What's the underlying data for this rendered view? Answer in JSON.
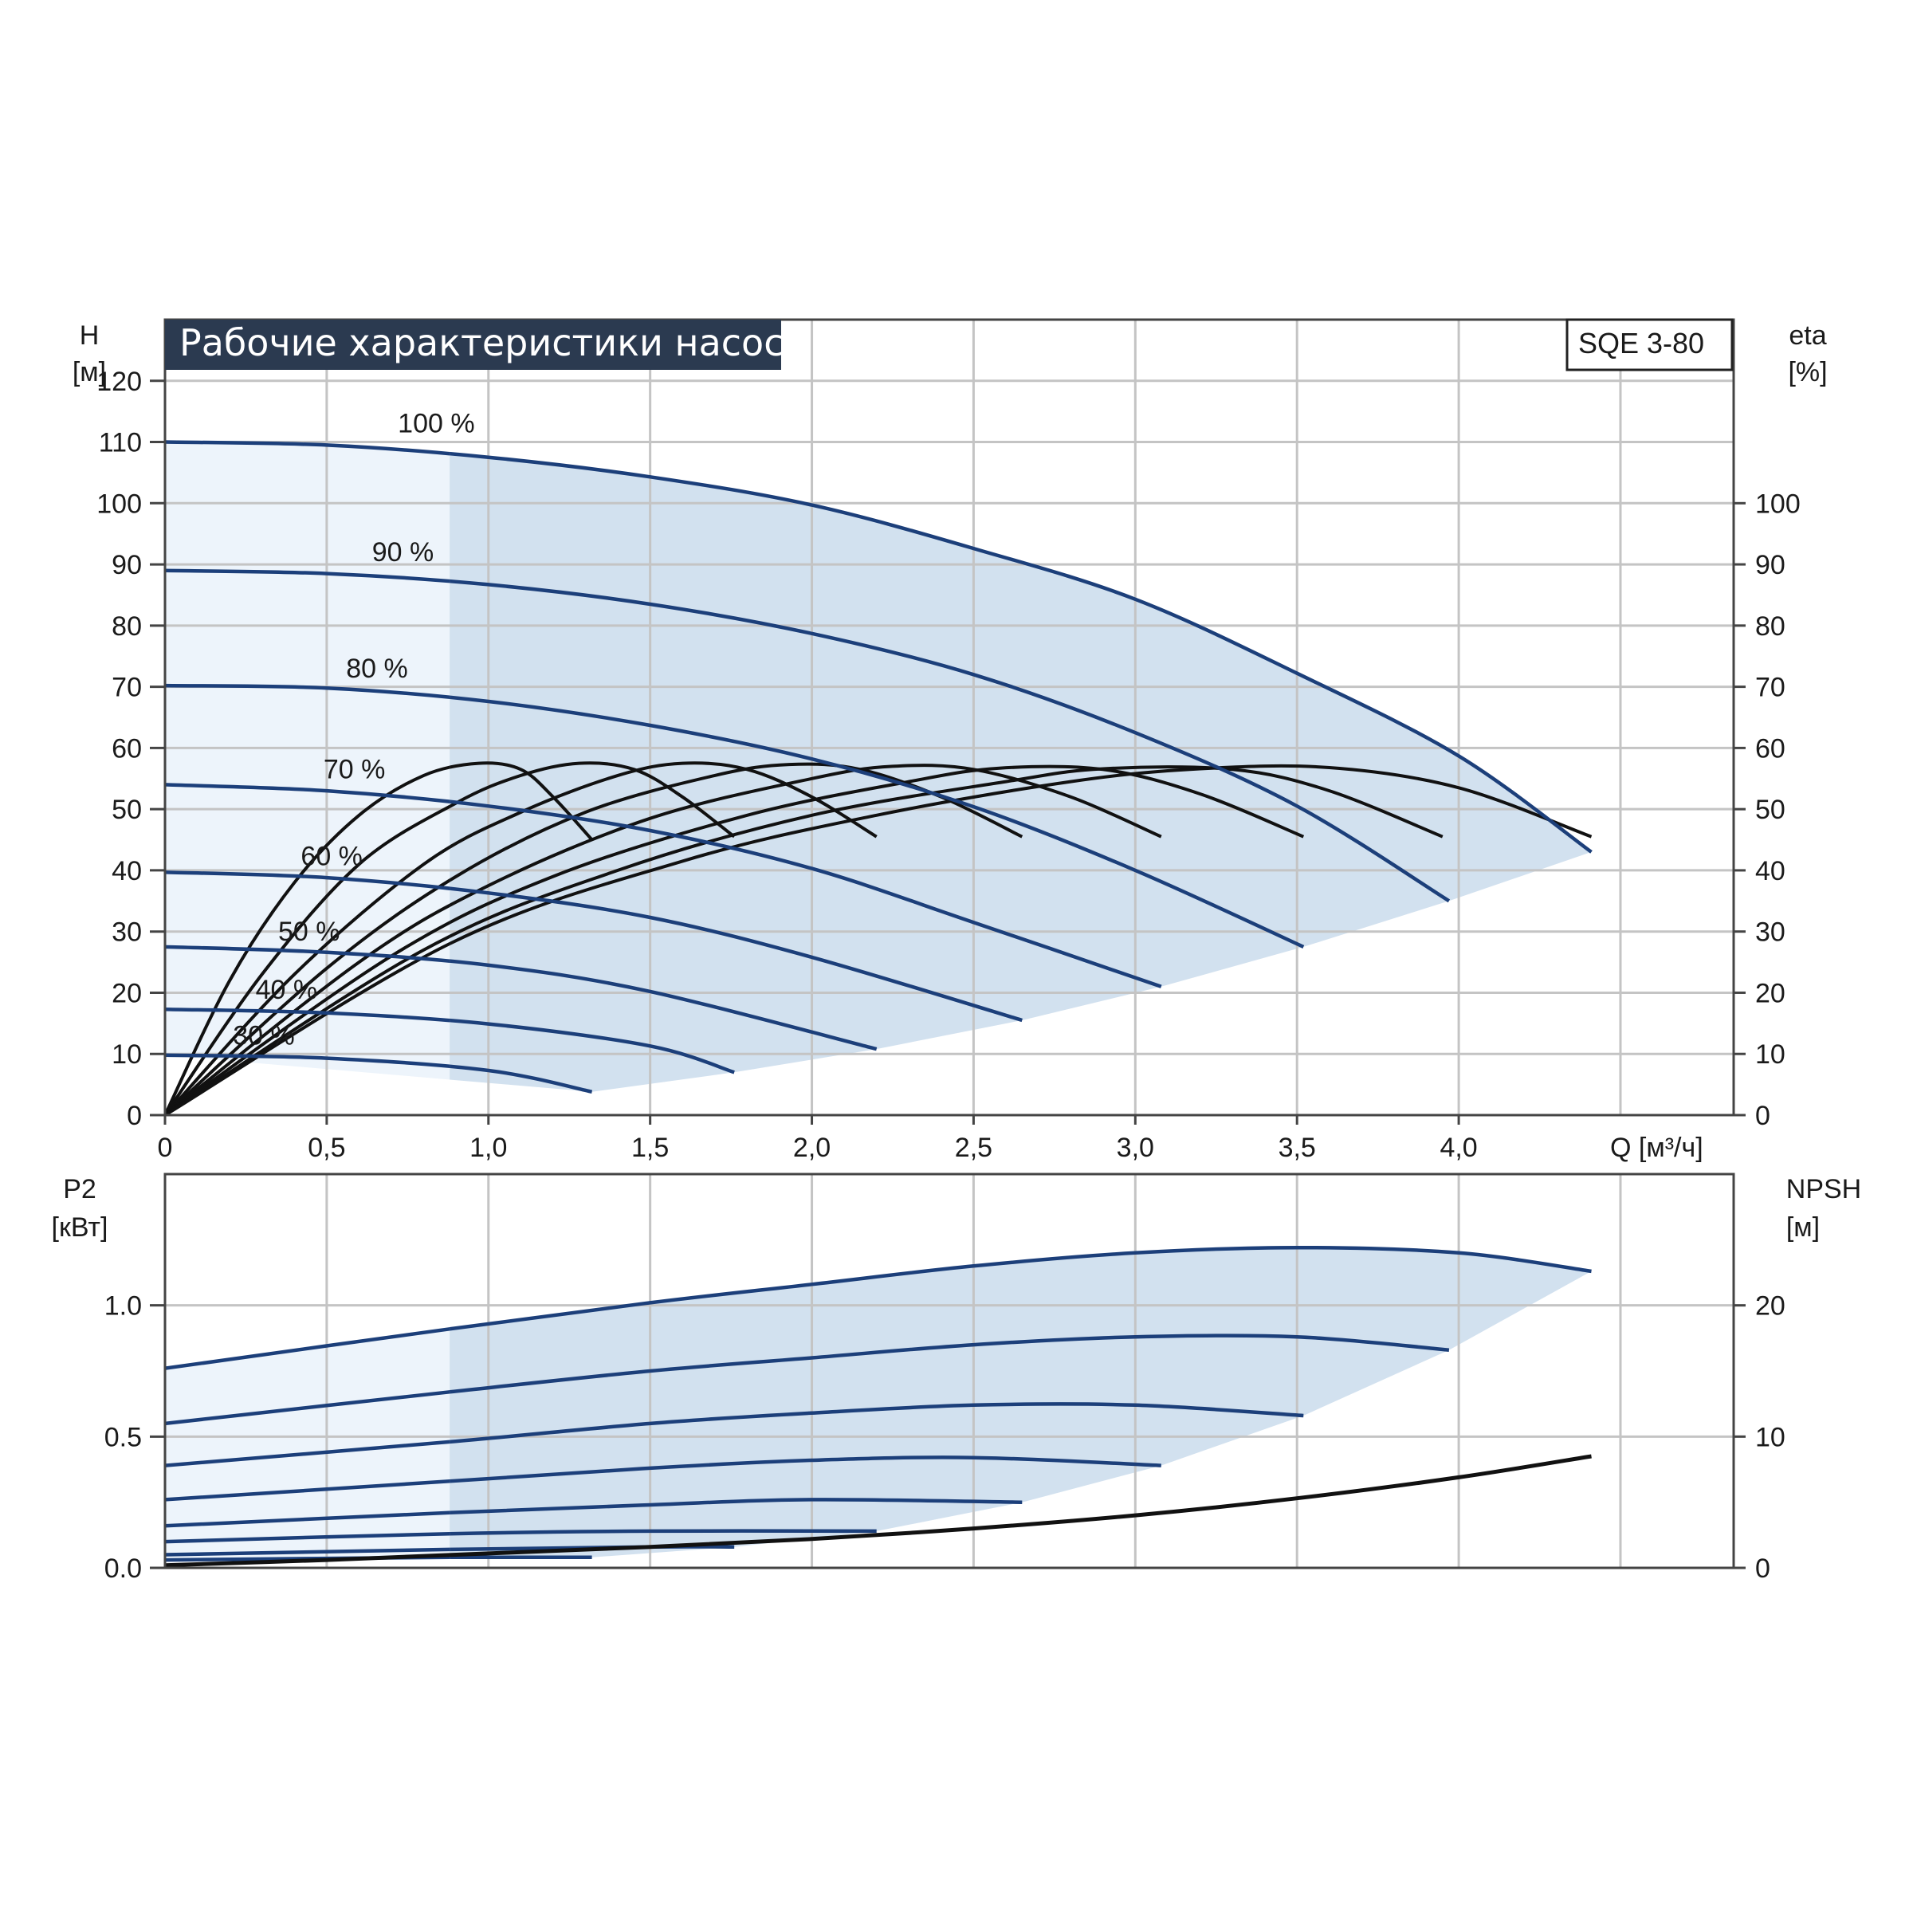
{
  "title": "Рабочие характеристики насоса",
  "model": "SQE 3-80",
  "colors": {
    "curve": "#1c3f7a",
    "eta_curve": "#111111",
    "region_fill": "#d2e1ef",
    "region_fill_light": "#edf4fb",
    "title_bg": "#2b3a50"
  },
  "chart_data": [
    {
      "type": "line",
      "name": "QH",
      "x_label": "Q [м³/ч]",
      "y_label_left": [
        "H",
        "[м]"
      ],
      "y_label_right": [
        "eta",
        "[%]"
      ],
      "x_ticks": [
        "0",
        "0,5",
        "1,0",
        "1,5",
        "2,0",
        "2,5",
        "3,0",
        "3,5",
        "4,0"
      ],
      "y_ticks_left": [
        "0",
        "10",
        "20",
        "30",
        "40",
        "50",
        "60",
        "70",
        "80",
        "90",
        "100",
        "110",
        "120"
      ],
      "y_ticks_right": [
        "0",
        "10",
        "20",
        "30",
        "40",
        "50",
        "60",
        "70",
        "80",
        "90",
        "100"
      ],
      "xlim": [
        0,
        4.85
      ],
      "ylim": [
        0,
        130
      ],
      "grid": true,
      "min_flow_boundary_q": 0.88,
      "speed_curves": [
        {
          "label": "100 %",
          "label_at": [
            0.72,
            110.5
          ],
          "points": [
            [
              0,
              110
            ],
            [
              0.5,
              109.5
            ],
            [
              1.0,
              107.5
            ],
            [
              1.5,
              104.3
            ],
            [
              2.0,
              99.7
            ],
            [
              2.5,
              92.6
            ],
            [
              3.0,
              84.3
            ],
            [
              3.5,
              72.2
            ],
            [
              4.0,
              58.7
            ],
            [
              4.41,
              43
            ]
          ]
        },
        {
          "label": "90 %",
          "label_at": [
            0.64,
            89.5
          ],
          "points": [
            [
              0,
              89
            ],
            [
              0.5,
              88.5
            ],
            [
              1.0,
              86.7
            ],
            [
              1.5,
              83.5
            ],
            [
              2.0,
              78.7
            ],
            [
              2.5,
              72.0
            ],
            [
              3.0,
              62.5
            ],
            [
              3.5,
              50.5
            ],
            [
              3.97,
              35
            ]
          ]
        },
        {
          "label": "80 %",
          "label_at": [
            0.56,
            70.5
          ],
          "points": [
            [
              0,
              70.2
            ],
            [
              0.5,
              69.8
            ],
            [
              1.0,
              67.6
            ],
            [
              1.5,
              63.7
            ],
            [
              2.0,
              58.2
            ],
            [
              2.5,
              50.4
            ],
            [
              3.0,
              40.0
            ],
            [
              3.52,
              27.5
            ]
          ]
        },
        {
          "label": "70 %",
          "label_at": [
            0.49,
            54
          ],
          "points": [
            [
              0,
              54
            ],
            [
              0.5,
              53.0
            ],
            [
              1.0,
              50.5
            ],
            [
              1.5,
              46.5
            ],
            [
              2.0,
              40.3
            ],
            [
              2.5,
              31.5
            ],
            [
              3.08,
              21
            ]
          ]
        },
        {
          "label": "60 %",
          "label_at": [
            0.42,
            39.8
          ],
          "points": [
            [
              0,
              39.7
            ],
            [
              0.5,
              38.8
            ],
            [
              1.0,
              36.3
            ],
            [
              1.5,
              32.3
            ],
            [
              2.0,
              25.8
            ],
            [
              2.65,
              15.5
            ]
          ]
        },
        {
          "label": "50 %",
          "label_at": [
            0.35,
            27.5
          ],
          "points": [
            [
              0,
              27.5
            ],
            [
              0.5,
              26.6
            ],
            [
              1.0,
              24.5
            ],
            [
              1.5,
              20.2
            ],
            [
              2.2,
              10.8
            ]
          ]
        },
        {
          "label": "40 %",
          "label_at": [
            0.28,
            18
          ],
          "points": [
            [
              0,
              17.3
            ],
            [
              0.5,
              16.7
            ],
            [
              1.0,
              14.9
            ],
            [
              1.5,
              11.3
            ],
            [
              1.76,
              7
            ]
          ]
        },
        {
          "label": "30 %",
          "label_at": [
            0.21,
            10.5
          ],
          "points": [
            [
              0,
              9.8
            ],
            [
              0.5,
              9.3
            ],
            [
              1.0,
              7.3
            ],
            [
              1.32,
              3.8
            ]
          ]
        }
      ],
      "efficiency_curves": [
        {
          "points": [
            [
              0,
              0
            ],
            [
              0.2,
              22
            ],
            [
              0.4,
              38
            ],
            [
              0.6,
              49
            ],
            [
              0.8,
              55.5
            ],
            [
              0.97,
              57.5
            ],
            [
              1.1,
              56.5
            ],
            [
              1.2,
              52
            ],
            [
              1.32,
              45
            ]
          ]
        },
        {
          "points": [
            [
              0,
              0
            ],
            [
              0.3,
              23
            ],
            [
              0.6,
              41
            ],
            [
              0.9,
              51
            ],
            [
              1.1,
              55.5
            ],
            [
              1.28,
              57.5
            ],
            [
              1.45,
              56.5
            ],
            [
              1.6,
              52
            ],
            [
              1.76,
              45.5
            ]
          ]
        },
        {
          "points": [
            [
              0,
              0
            ],
            [
              0.4,
              23
            ],
            [
              0.8,
              41
            ],
            [
              1.1,
              49.5
            ],
            [
              1.4,
              55.5
            ],
            [
              1.6,
              57.5
            ],
            [
              1.8,
              56.5
            ],
            [
              2.0,
              52
            ],
            [
              2.2,
              45.5
            ]
          ]
        },
        {
          "points": [
            [
              0,
              0
            ],
            [
              0.5,
              24
            ],
            [
              0.9,
              39
            ],
            [
              1.3,
              49.5
            ],
            [
              1.7,
              55.5
            ],
            [
              1.93,
              57.3
            ],
            [
              2.15,
              56.5
            ],
            [
              2.4,
              52
            ],
            [
              2.65,
              45.5
            ]
          ]
        },
        {
          "points": [
            [
              0,
              0
            ],
            [
              0.6,
              25
            ],
            [
              1.0,
              37.5
            ],
            [
              1.5,
              48.5
            ],
            [
              2.0,
              55
            ],
            [
              2.25,
              57
            ],
            [
              2.5,
              56.5
            ],
            [
              2.8,
              52
            ],
            [
              3.08,
              45.5
            ]
          ]
        },
        {
          "points": [
            [
              0,
              0
            ],
            [
              0.7,
              26
            ],
            [
              1.2,
              39
            ],
            [
              1.8,
              49
            ],
            [
              2.3,
              54.5
            ],
            [
              2.58,
              56.7
            ],
            [
              2.9,
              56.5
            ],
            [
              3.2,
              52.5
            ],
            [
              3.52,
              45.5
            ]
          ]
        },
        {
          "points": [
            [
              0,
              0
            ],
            [
              0.8,
              27
            ],
            [
              1.4,
              40
            ],
            [
              2.0,
              49
            ],
            [
              2.6,
              54.5
            ],
            [
              2.9,
              56.6
            ],
            [
              3.3,
              56.5
            ],
            [
              3.6,
              53
            ],
            [
              3.95,
              45.5
            ]
          ]
        },
        {
          "points": [
            [
              0,
              0
            ],
            [
              0.88,
              28
            ],
            [
              1.6,
              41.5
            ],
            [
              2.2,
              49
            ],
            [
              2.8,
              54.5
            ],
            [
              3.2,
              56.6
            ],
            [
              3.6,
              56.8
            ],
            [
              4.0,
              53.5
            ],
            [
              4.41,
              45.5
            ]
          ]
        }
      ]
    },
    {
      "type": "line",
      "name": "P2 / NPSH",
      "y_label_left": [
        "P2",
        "[кВт]"
      ],
      "y_label_right": [
        "NPSH",
        "[м]"
      ],
      "y_ticks_left": [
        "0.0",
        "0.5",
        "1.0"
      ],
      "y_ticks_right": [
        "0",
        "10",
        "20"
      ],
      "xlim": [
        0,
        4.85
      ],
      "ylim": [
        0,
        1.5
      ],
      "ylim_right": [
        0,
        30
      ],
      "grid": true,
      "power_curves": [
        {
          "points": [
            [
              0,
              0.76
            ],
            [
              0.88,
              0.91
            ],
            [
              1.5,
              1.01
            ],
            [
              2.0,
              1.08
            ],
            [
              2.5,
              1.15
            ],
            [
              3.0,
              1.2
            ],
            [
              3.5,
              1.22
            ],
            [
              4.0,
              1.2
            ],
            [
              4.41,
              1.13
            ]
          ]
        },
        {
          "points": [
            [
              0,
              0.55
            ],
            [
              0.88,
              0.67
            ],
            [
              1.5,
              0.75
            ],
            [
              2.0,
              0.8
            ],
            [
              2.5,
              0.85
            ],
            [
              3.0,
              0.88
            ],
            [
              3.5,
              0.88
            ],
            [
              3.97,
              0.83
            ]
          ]
        },
        {
          "points": [
            [
              0,
              0.39
            ],
            [
              0.88,
              0.48
            ],
            [
              1.5,
              0.55
            ],
            [
              2.0,
              0.59
            ],
            [
              2.5,
              0.62
            ],
            [
              3.0,
              0.62
            ],
            [
              3.52,
              0.58
            ]
          ]
        },
        {
          "points": [
            [
              0,
              0.26
            ],
            [
              0.88,
              0.33
            ],
            [
              1.5,
              0.38
            ],
            [
              2.0,
              0.41
            ],
            [
              2.5,
              0.42
            ],
            [
              3.08,
              0.39
            ]
          ]
        },
        {
          "points": [
            [
              0,
              0.16
            ],
            [
              0.88,
              0.21
            ],
            [
              1.5,
              0.24
            ],
            [
              2.0,
              0.26
            ],
            [
              2.65,
              0.25
            ]
          ]
        },
        {
          "points": [
            [
              0,
              0.1
            ],
            [
              0.88,
              0.13
            ],
            [
              1.5,
              0.14
            ],
            [
              2.2,
              0.14
            ]
          ]
        },
        {
          "points": [
            [
              0,
              0.05
            ],
            [
              0.88,
              0.07
            ],
            [
              1.5,
              0.08
            ],
            [
              1.76,
              0.08
            ]
          ]
        },
        {
          "points": [
            [
              0,
              0.03
            ],
            [
              0.88,
              0.04
            ],
            [
              1.32,
              0.04
            ]
          ]
        }
      ],
      "npsh_curve": {
        "points": [
          [
            0,
            0.2
          ],
          [
            0.5,
            0.6
          ],
          [
            1.0,
            1.1
          ],
          [
            1.5,
            1.6
          ],
          [
            2.0,
            2.2
          ],
          [
            2.5,
            3.0
          ],
          [
            3.0,
            4.0
          ],
          [
            3.5,
            5.3
          ],
          [
            4.0,
            6.9
          ],
          [
            4.41,
            8.5
          ]
        ]
      }
    }
  ]
}
